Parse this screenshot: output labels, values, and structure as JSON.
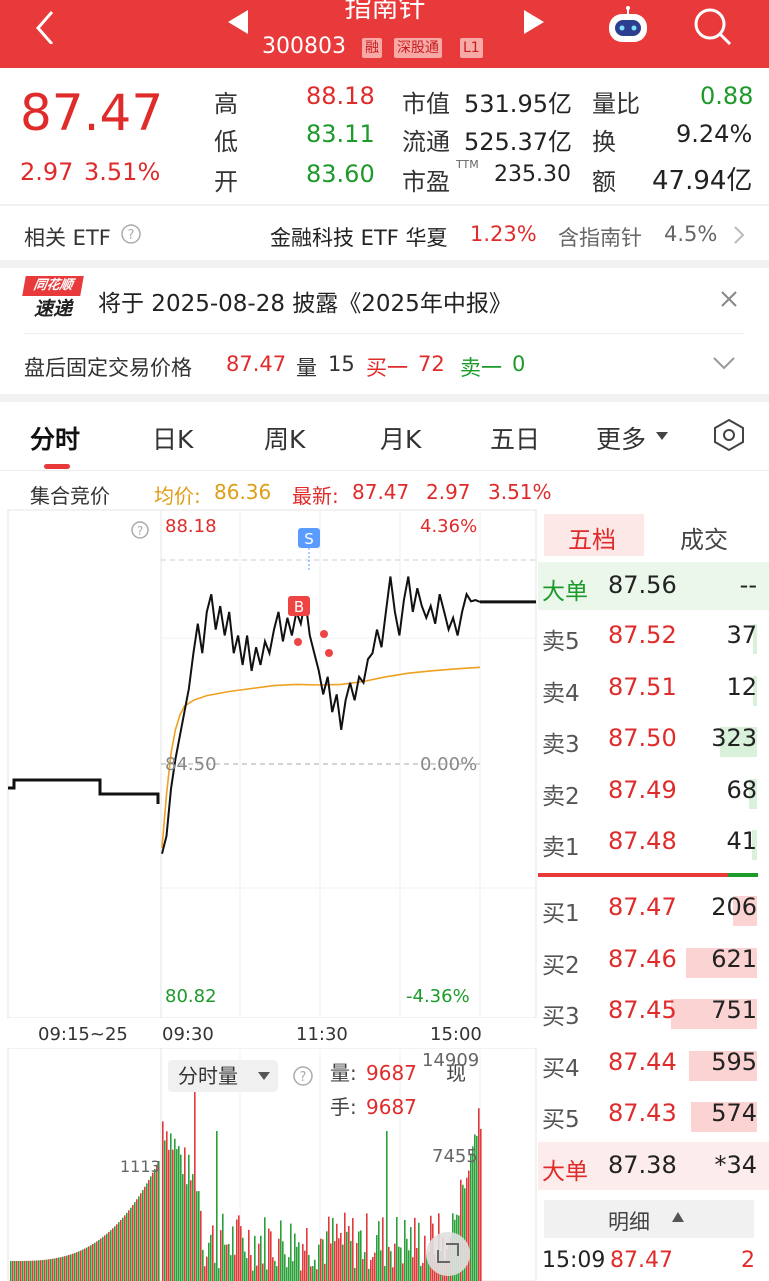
{
  "header": {
    "name": "指南针",
    "code": "300803",
    "tags": [
      "融",
      "深股通",
      "L1"
    ]
  },
  "quote": {
    "price": "87.47",
    "change": "2.97",
    "change_pct": "3.51%",
    "high_label": "高",
    "high": "88.18",
    "low_label": "低",
    "low": "83.11",
    "open_label": "开",
    "open": "83.60",
    "mcap_label": "市值",
    "mcap": "531.95亿",
    "float_label": "流通",
    "float": "525.37亿",
    "pe_label": "市盈",
    "pe_sup": "TTM",
    "pe": "235.30",
    "vr_label": "量比",
    "vr": "0.88",
    "turnover_label": "换",
    "turnover": "9.24%",
    "amount_label": "额",
    "amount": "47.94亿"
  },
  "etf": {
    "label": "相关 ETF",
    "name": "金融科技 ETF 华夏",
    "pct": "1.23%",
    "hold": "含指南针",
    "hold_pct": "4.5%"
  },
  "notice": {
    "logo_line1": "同花顺",
    "logo_line2": "速递",
    "text": "将于 2025-08-28 披露《2025年中报》"
  },
  "after_hours": {
    "label": "盘后固定交易价格",
    "price": "87.47",
    "vol_label": "量",
    "vol": "15",
    "bid_label": "买一",
    "bid": "72",
    "ask_label": "卖一",
    "ask": "0"
  },
  "tabs": [
    "分时",
    "日K",
    "周K",
    "月K",
    "五日",
    "更多"
  ],
  "chart_info": {
    "auction": "集合竞价",
    "avg_label": "均价:",
    "avg": "86.36",
    "latest_label": "最新:",
    "latest": "87.47",
    "chg": "2.97",
    "chg_pct": "3.51%"
  },
  "chart_labels": {
    "top_price": "88.18",
    "top_pct": "4.36%",
    "mid_price": "84.50",
    "mid_pct": "0.00%",
    "bot_price": "80.82",
    "bot_pct": "-4.36%",
    "t_auction": "09:15~25",
    "t_open": "09:30",
    "t_mid": "11:30",
    "t_close": "15:00",
    "marker_s": "S",
    "marker_b": "B"
  },
  "volume_panel": {
    "selector": "分时量",
    "vol_label": "量:",
    "vol": "9687",
    "hand_label": "手:",
    "hand": "9687",
    "now": "现",
    "max_label": "14909",
    "mid_label": "7455",
    "auction_label": "1113"
  },
  "orderbook": {
    "tab_active": "五档",
    "tab_other": "成交",
    "big_ask_label": "大单",
    "big_ask_price": "87.56",
    "big_ask_vol": "--",
    "asks": [
      {
        "label": "卖5",
        "price": "87.52",
        "vol": "37"
      },
      {
        "label": "卖4",
        "price": "87.51",
        "vol": "12"
      },
      {
        "label": "卖3",
        "price": "87.50",
        "vol": "323"
      },
      {
        "label": "卖2",
        "price": "87.49",
        "vol": "68"
      },
      {
        "label": "卖1",
        "price": "87.48",
        "vol": "41"
      }
    ],
    "bids": [
      {
        "label": "买1",
        "price": "87.47",
        "vol": "206"
      },
      {
        "label": "买2",
        "price": "87.46",
        "vol": "621"
      },
      {
        "label": "买3",
        "price": "87.45",
        "vol": "751"
      },
      {
        "label": "买4",
        "price": "87.44",
        "vol": "595"
      },
      {
        "label": "买5",
        "price": "87.43",
        "vol": "574"
      }
    ],
    "big_bid_label": "大单",
    "big_bid_price": "87.38",
    "big_bid_vol": "*34",
    "detail_label": "明细",
    "last_time": "15:09",
    "last_price": "87.47",
    "last_vol": "2"
  },
  "chart_data": {
    "type": "line",
    "prev_close": 84.5,
    "ylim": [
      80.82,
      88.18
    ],
    "price_series": [
      [
        0,
        83.2
      ],
      [
        2,
        83.5
      ],
      [
        4,
        84.3
      ],
      [
        6,
        84.8
      ],
      [
        8,
        85.2
      ],
      [
        10,
        85.6
      ],
      [
        12,
        86.0
      ],
      [
        14,
        86.6
      ],
      [
        16,
        87.1
      ],
      [
        18,
        86.6
      ],
      [
        20,
        87.3
      ],
      [
        22,
        87.6
      ],
      [
        24,
        87.0
      ],
      [
        26,
        87.4
      ],
      [
        28,
        86.9
      ],
      [
        30,
        87.3
      ],
      [
        32,
        86.6
      ],
      [
        34,
        86.9
      ],
      [
        36,
        86.4
      ],
      [
        38,
        86.9
      ],
      [
        40,
        86.3
      ],
      [
        42,
        86.7
      ],
      [
        44,
        86.4
      ],
      [
        46,
        86.8
      ],
      [
        48,
        86.6
      ],
      [
        50,
        87.0
      ],
      [
        52,
        87.3
      ],
      [
        54,
        86.8
      ],
      [
        56,
        87.2
      ],
      [
        58,
        86.9
      ],
      [
        60,
        87.3
      ],
      [
        62,
        87.1
      ],
      [
        64,
        87.5
      ],
      [
        66,
        86.9
      ],
      [
        68,
        86.6
      ],
      [
        70,
        86.3
      ],
      [
        72,
        85.9
      ],
      [
        74,
        86.2
      ],
      [
        76,
        85.6
      ],
      [
        78,
        85.9
      ],
      [
        80,
        85.3
      ],
      [
        82,
        85.8
      ],
      [
        84,
        86.1
      ],
      [
        86,
        85.8
      ],
      [
        88,
        86.2
      ],
      [
        90,
        86.1
      ],
      [
        92,
        86.5
      ],
      [
        94,
        86.6
      ],
      [
        96,
        87.0
      ],
      [
        98,
        86.7
      ],
      [
        100,
        87.3
      ],
      [
        102,
        87.9
      ],
      [
        104,
        87.3
      ],
      [
        106,
        86.9
      ],
      [
        108,
        87.5
      ],
      [
        110,
        87.9
      ],
      [
        112,
        87.3
      ],
      [
        114,
        87.7
      ],
      [
        116,
        87.4
      ],
      [
        118,
        87.2
      ],
      [
        120,
        87.4
      ],
      [
        122,
        87.1
      ],
      [
        124,
        87.6
      ],
      [
        126,
        87.3
      ],
      [
        128,
        87.0
      ],
      [
        130,
        87.2
      ],
      [
        132,
        86.9
      ],
      [
        134,
        87.3
      ],
      [
        136,
        87.6
      ],
      [
        138,
        87.48
      ],
      [
        140,
        87.5
      ],
      [
        142,
        87.47
      ]
    ],
    "avg_series": [
      [
        0,
        83.3
      ],
      [
        2,
        84.2
      ],
      [
        4,
        84.9
      ],
      [
        6,
        85.3
      ],
      [
        8,
        85.55
      ],
      [
        10,
        85.7
      ],
      [
        14,
        85.8
      ],
      [
        20,
        85.88
      ],
      [
        30,
        85.95
      ],
      [
        40,
        86.0
      ],
      [
        50,
        86.05
      ],
      [
        60,
        86.07
      ],
      [
        70,
        86.06
      ],
      [
        80,
        86.07
      ],
      [
        90,
        86.12
      ],
      [
        100,
        86.2
      ],
      [
        110,
        86.26
      ],
      [
        120,
        86.3
      ],
      [
        130,
        86.33
      ],
      [
        142,
        86.36
      ]
    ],
    "auction_level": 84.45,
    "volume_max": 14909,
    "auction_volume": 1113
  }
}
